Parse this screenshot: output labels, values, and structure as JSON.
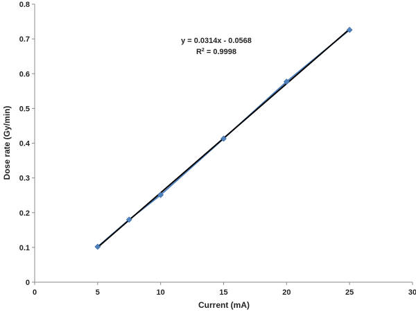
{
  "chart_data": {
    "type": "scatter",
    "xlabel": "Current (mA)",
    "ylabel": "Dose rate (Gy/min)",
    "xlim": [
      0,
      30
    ],
    "ylim": [
      0,
      0.8
    ],
    "x_ticks": [
      "0",
      "5",
      "10",
      "15",
      "20",
      "25",
      "30"
    ],
    "y_ticks": [
      "0",
      "0.1",
      "0.2",
      "0.3",
      "0.4",
      "0.5",
      "0.6",
      "0.7",
      "0.8"
    ],
    "grid": false,
    "series": [
      {
        "x": [
          5,
          7.5,
          10,
          15,
          20,
          25
        ],
        "y": [
          0.102,
          0.18,
          0.251,
          0.413,
          0.577,
          0.726
        ],
        "color": "#4f81bd",
        "marker": "diamond",
        "connected": true
      }
    ],
    "trendline": {
      "slope": 0.0314,
      "intercept": -0.0568,
      "x_range": [
        5,
        25
      ],
      "color": "#000000",
      "equation": "y = 0.0314x - 0.0568",
      "r2_label": "R",
      "r2_sup": "2",
      "r2_value": " = 0.9998"
    }
  }
}
